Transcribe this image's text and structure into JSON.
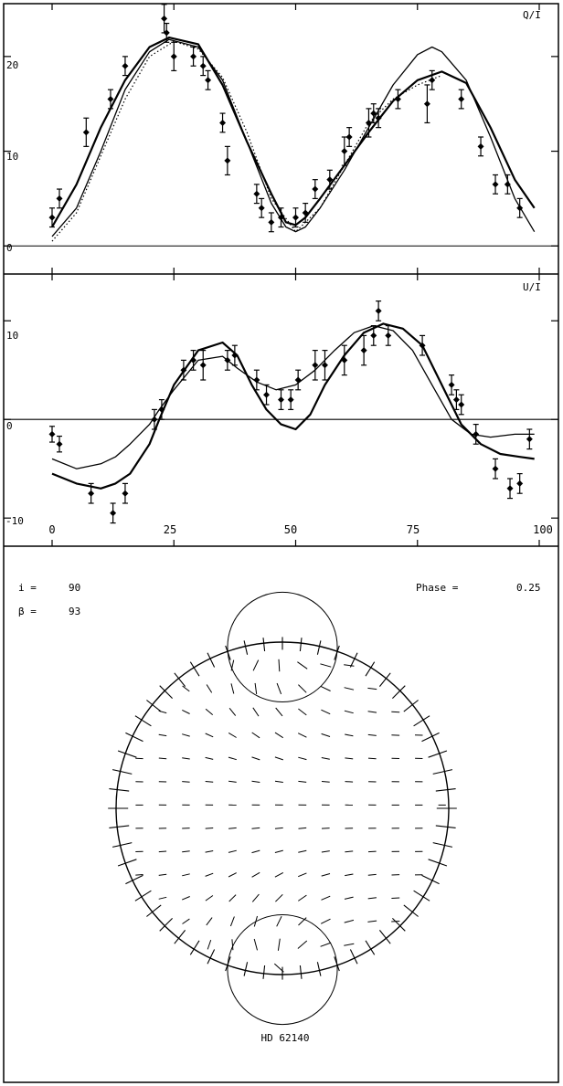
{
  "chart_data": [
    {
      "type": "line",
      "panel_label": "Q/I",
      "xlim": [
        0,
        100
      ],
      "ylim": [
        -2,
        25
      ],
      "yticks": [
        0,
        10,
        20
      ],
      "zero_line": true,
      "series": [
        {
          "style": "solid-heavy",
          "x": [
            0,
            5,
            10,
            15,
            20,
            24,
            30,
            35,
            40,
            45,
            48,
            50,
            52,
            55,
            60,
            65,
            70,
            75,
            80,
            85,
            90,
            95,
            99
          ],
          "y": [
            2,
            6.5,
            12.5,
            17.5,
            21,
            22,
            21.3,
            17,
            11,
            5.5,
            2.5,
            2.2,
            3,
            5,
            8.5,
            12,
            15.3,
            17.5,
            18.4,
            17.2,
            12.5,
            7,
            4
          ]
        },
        {
          "style": "solid-light",
          "x": [
            0,
            5,
            10,
            15,
            20,
            24,
            30,
            35,
            40,
            45,
            48,
            50,
            52,
            55,
            60,
            65,
            70,
            75,
            78,
            80,
            85,
            90,
            95,
            99
          ],
          "y": [
            1,
            4,
            10,
            16.5,
            20.5,
            21.8,
            21,
            17.5,
            11,
            4.5,
            2,
            1.5,
            2,
            4,
            8,
            12.5,
            17,
            20.2,
            21,
            20.5,
            17.5,
            11.5,
            5,
            1.5
          ]
        },
        {
          "style": "dotted",
          "x": [
            0,
            5,
            10,
            15,
            20,
            25,
            30,
            35,
            40,
            45,
            50,
            55,
            60,
            65,
            70,
            75,
            80
          ],
          "y": [
            0.5,
            3.5,
            9.5,
            15.5,
            20,
            21.6,
            20.8,
            17.8,
            12,
            5,
            1.5,
            4,
            8.5,
            13,
            15.5,
            17,
            18
          ]
        }
      ],
      "points": [
        {
          "x": 0,
          "y": 3,
          "err": 1
        },
        {
          "x": 1.5,
          "y": 5,
          "err": 1
        },
        {
          "x": 7,
          "y": 12,
          "err": 1.5
        },
        {
          "x": 12,
          "y": 15.5,
          "err": 1
        },
        {
          "x": 15,
          "y": 19,
          "err": 1
        },
        {
          "x": 23,
          "y": 24,
          "err": 1.5
        },
        {
          "x": 23.5,
          "y": 22.5,
          "err": 1
        },
        {
          "x": 25,
          "y": 20,
          "err": 1.5
        },
        {
          "x": 29,
          "y": 20,
          "err": 1
        },
        {
          "x": 31,
          "y": 19,
          "err": 1
        },
        {
          "x": 32,
          "y": 17.5,
          "err": 1
        },
        {
          "x": 35,
          "y": 13,
          "err": 1
        },
        {
          "x": 36,
          "y": 9,
          "err": 1.5
        },
        {
          "x": 42,
          "y": 5.5,
          "err": 1
        },
        {
          "x": 43,
          "y": 4,
          "err": 1
        },
        {
          "x": 45,
          "y": 2.5,
          "err": 1
        },
        {
          "x": 47,
          "y": 3,
          "err": 1
        },
        {
          "x": 50,
          "y": 3,
          "err": 1
        },
        {
          "x": 52,
          "y": 3.5,
          "err": 1
        },
        {
          "x": 54,
          "y": 6,
          "err": 1
        },
        {
          "x": 57,
          "y": 7,
          "err": 1
        },
        {
          "x": 60,
          "y": 10,
          "err": 1.5
        },
        {
          "x": 61,
          "y": 11.5,
          "err": 1
        },
        {
          "x": 65,
          "y": 13,
          "err": 1.5
        },
        {
          "x": 66,
          "y": 14,
          "err": 1
        },
        {
          "x": 67,
          "y": 13.5,
          "err": 1
        },
        {
          "x": 71,
          "y": 15.5,
          "err": 1
        },
        {
          "x": 77,
          "y": 15,
          "err": 2
        },
        {
          "x": 78,
          "y": 17.5,
          "err": 1
        },
        {
          "x": 84,
          "y": 15.5,
          "err": 1
        },
        {
          "x": 88,
          "y": 10.5,
          "err": 1
        },
        {
          "x": 91,
          "y": 6.5,
          "err": 1
        },
        {
          "x": 93.5,
          "y": 6.5,
          "err": 1
        },
        {
          "x": 96,
          "y": 4,
          "err": 1
        }
      ]
    },
    {
      "type": "line",
      "panel_label": "U/I",
      "xlim": [
        0,
        100
      ],
      "ylim": [
        -11,
        14
      ],
      "yticks": [
        -10,
        0,
        10
      ],
      "xticks": [
        0,
        25,
        50,
        75,
        100
      ],
      "zero_line": true,
      "series": [
        {
          "style": "solid",
          "x": [
            0,
            5,
            10,
            13,
            16,
            20,
            22,
            25,
            30,
            35,
            38,
            42,
            46,
            50,
            54,
            58,
            62,
            66,
            70,
            74,
            78,
            82,
            86,
            90,
            95,
            99
          ],
          "y": [
            -4,
            -5,
            -4.5,
            -3.8,
            -2.5,
            -0.5,
            1,
            3,
            6,
            6.4,
            5.2,
            3.8,
            3,
            3.5,
            5,
            7,
            8.8,
            9.5,
            9,
            7,
            3.5,
            0,
            -1.5,
            -1.8,
            -1.5,
            -1.5
          ]
        },
        {
          "style": "solid-heavy",
          "x": [
            0,
            5,
            10,
            13,
            16,
            20,
            22,
            25,
            30,
            35,
            38,
            41,
            44,
            47,
            50,
            53,
            56,
            60,
            64,
            68,
            72,
            76,
            80,
            84,
            88,
            92,
            96,
            99
          ],
          "y": [
            -5.5,
            -6.5,
            -7,
            -6.5,
            -5.5,
            -2.5,
            0,
            3.5,
            7,
            7.8,
            6.5,
            3.5,
            1,
            -0.5,
            -1,
            0.5,
            3.5,
            6.5,
            8.8,
            9.7,
            9.2,
            7.5,
            3.5,
            -0.5,
            -2.5,
            -3.5,
            -3.8,
            -4
          ]
        }
      ],
      "points": [
        {
          "x": 0,
          "y": -1.5,
          "err": 0.8
        },
        {
          "x": 1.5,
          "y": -2.5,
          "err": 0.8
        },
        {
          "x": 8,
          "y": -7.5,
          "err": 1
        },
        {
          "x": 12.5,
          "y": -9.5,
          "err": 1
        },
        {
          "x": 15,
          "y": -7.5,
          "err": 1
        },
        {
          "x": 21,
          "y": 0,
          "err": 1
        },
        {
          "x": 22.5,
          "y": 1,
          "err": 1
        },
        {
          "x": 27,
          "y": 5,
          "err": 1
        },
        {
          "x": 29,
          "y": 6,
          "err": 1
        },
        {
          "x": 31,
          "y": 5.5,
          "err": 1.5
        },
        {
          "x": 36,
          "y": 6,
          "err": 1
        },
        {
          "x": 37.5,
          "y": 6.5,
          "err": 1
        },
        {
          "x": 42,
          "y": 4,
          "err": 1
        },
        {
          "x": 44,
          "y": 2.5,
          "err": 1
        },
        {
          "x": 47,
          "y": 2,
          "err": 1
        },
        {
          "x": 49,
          "y": 2,
          "err": 1
        },
        {
          "x": 50.5,
          "y": 4,
          "err": 1
        },
        {
          "x": 54,
          "y": 5.5,
          "err": 1.5
        },
        {
          "x": 56,
          "y": 5.5,
          "err": 1.5
        },
        {
          "x": 60,
          "y": 6,
          "err": 1.5
        },
        {
          "x": 64,
          "y": 7,
          "err": 1.5
        },
        {
          "x": 66,
          "y": 8.5,
          "err": 1
        },
        {
          "x": 67,
          "y": 11,
          "err": 1
        },
        {
          "x": 69,
          "y": 8.5,
          "err": 1
        },
        {
          "x": 76,
          "y": 7.5,
          "err": 1
        },
        {
          "x": 82,
          "y": 3.5,
          "err": 1
        },
        {
          "x": 83,
          "y": 2,
          "err": 1
        },
        {
          "x": 84,
          "y": 1.5,
          "err": 1
        },
        {
          "x": 87,
          "y": -1.5,
          "err": 1
        },
        {
          "x": 91,
          "y": -5,
          "err": 1
        },
        {
          "x": 94,
          "y": -7,
          "err": 1
        },
        {
          "x": 96,
          "y": -6.5,
          "err": 1
        },
        {
          "x": 98,
          "y": -2,
          "err": 1
        }
      ]
    },
    {
      "type": "polarization-map",
      "params": [
        {
          "label": "i =",
          "value": "90"
        },
        {
          "label": "β =",
          "value": "93"
        }
      ],
      "phase_label": "Phase =",
      "phase_value": "0.25",
      "star_name": "HD 62140",
      "field": {
        "grid_step": 0.14,
        "spot_offset": 0.97,
        "spot_radius": 0.33,
        "limb_segments": 56
      }
    }
  ]
}
